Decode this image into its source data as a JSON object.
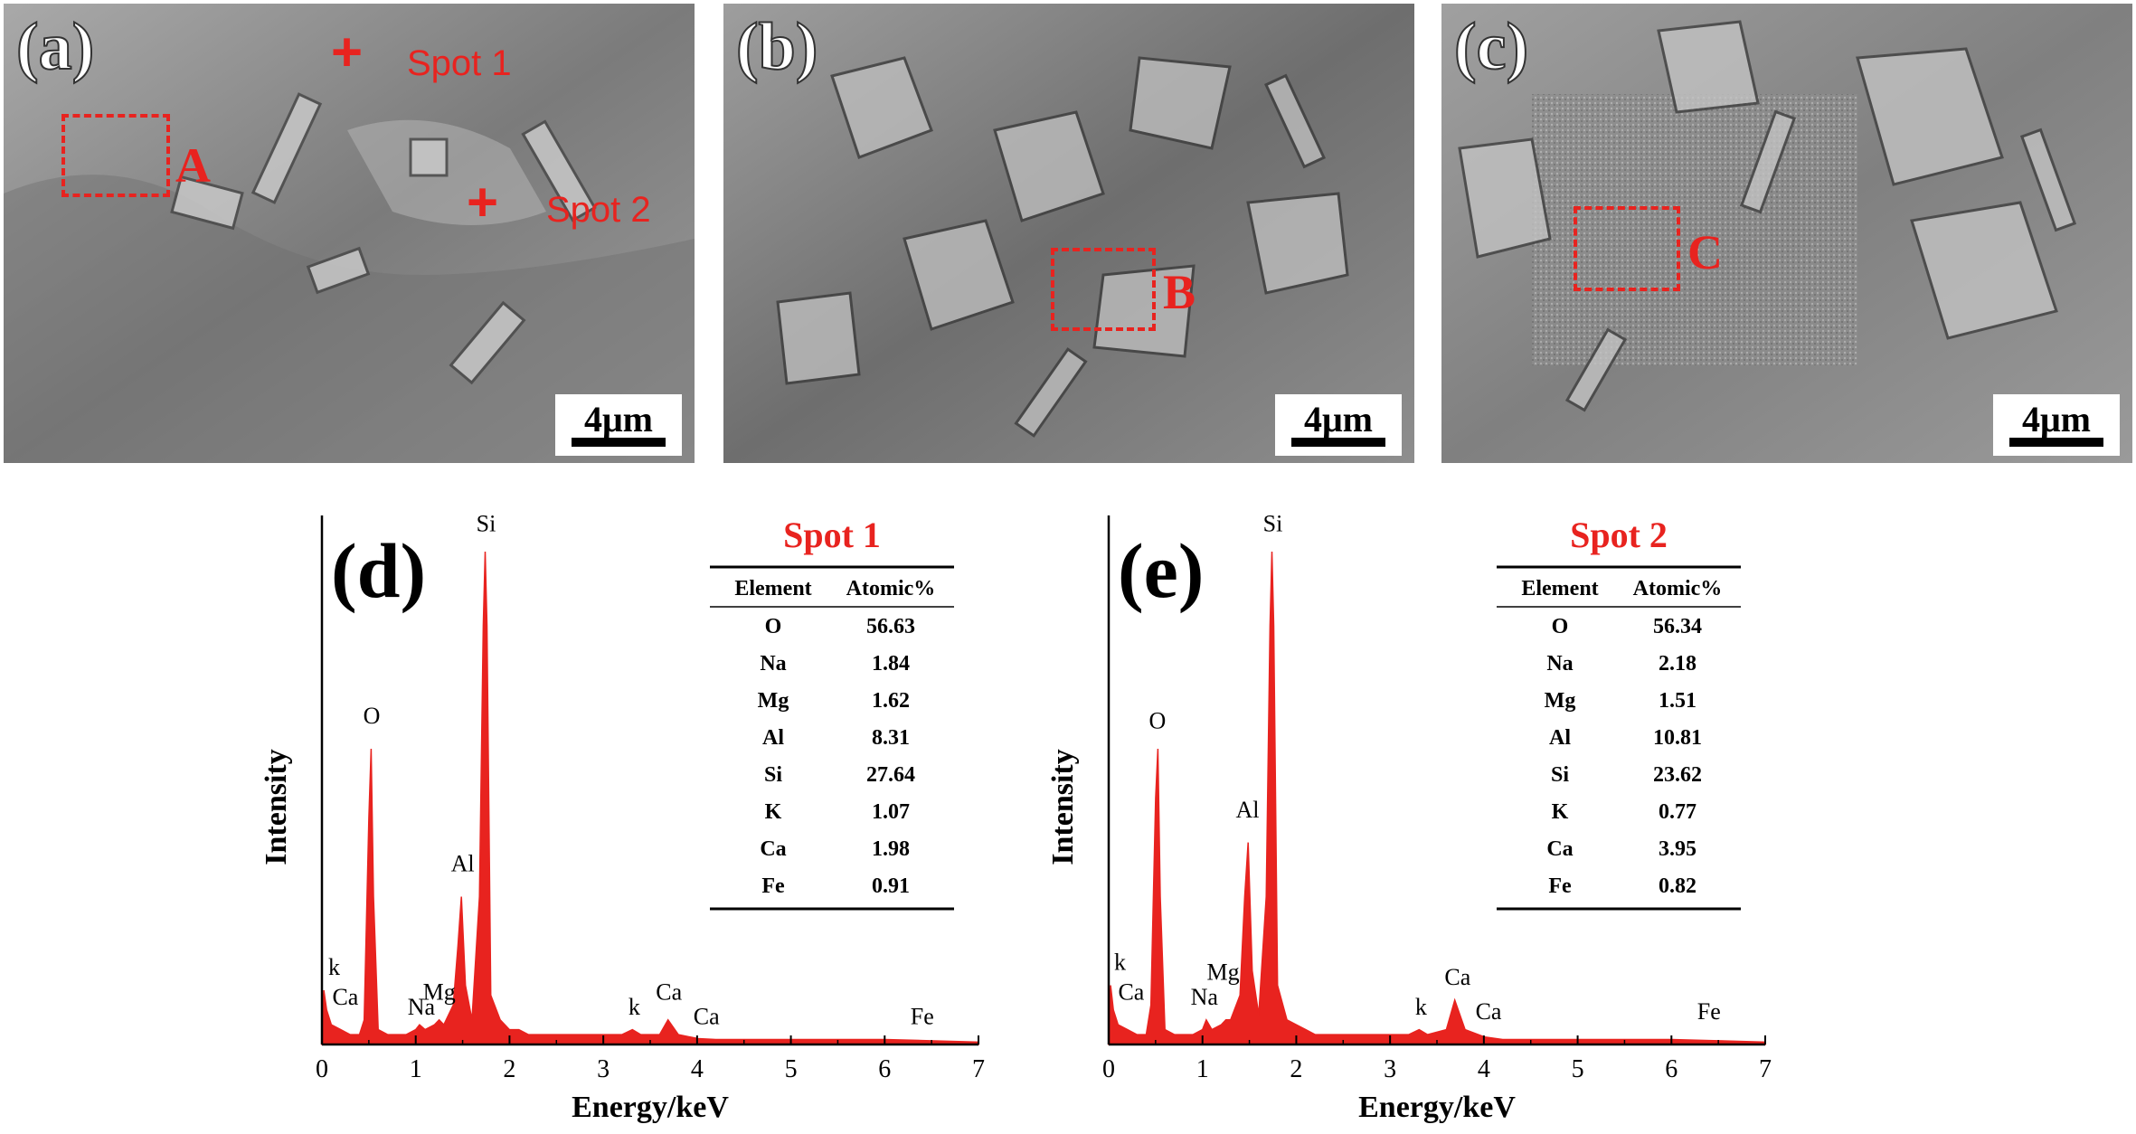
{
  "sem_panels": [
    {
      "letter": "(a)",
      "scale_bar": "4μm",
      "roi": {
        "label": "A"
      },
      "spots": [
        {
          "mark": "+",
          "label": "Spot 1"
        },
        {
          "mark": "+",
          "label": "Spot 2"
        }
      ]
    },
    {
      "letter": "(b)",
      "scale_bar": "4μm",
      "roi": {
        "label": "B"
      }
    },
    {
      "letter": "(c)",
      "scale_bar": "4μm",
      "roi": {
        "label": "C"
      }
    }
  ],
  "colors": {
    "spectrum": "#e8231f",
    "annotation": "#e8231f",
    "axis": "#000000",
    "sem_gray": "#8a8a8a"
  },
  "chart_data": [
    {
      "type": "line",
      "panel_letter": "(d)",
      "title": "Spot 1",
      "xlabel": "Energy/keV",
      "ylabel": "Intensity",
      "xlim": [
        0,
        7
      ],
      "ylim": [
        0,
        1
      ],
      "xticks": [
        "0",
        "1",
        "2",
        "3",
        "4",
        "5",
        "6",
        "7"
      ],
      "series": [
        {
          "x": [
            0.0,
            0.02,
            0.05,
            0.1,
            0.2,
            0.3,
            0.4,
            0.45,
            0.5,
            0.525,
            0.55,
            0.6,
            0.7,
            0.9,
            1.0,
            1.04,
            1.1,
            1.2,
            1.25,
            1.3,
            1.4,
            1.45,
            1.487,
            1.53,
            1.6,
            1.68,
            1.72,
            1.74,
            1.76,
            1.8,
            1.9,
            2.0,
            2.1,
            2.2,
            2.5,
            3.0,
            3.2,
            3.31,
            3.4,
            3.6,
            3.69,
            3.8,
            4.01,
            4.2,
            5.0,
            6.0,
            6.4,
            7.0
          ],
          "y": [
            0.06,
            0.11,
            0.07,
            0.04,
            0.03,
            0.02,
            0.02,
            0.05,
            0.46,
            0.6,
            0.3,
            0.03,
            0.02,
            0.02,
            0.03,
            0.04,
            0.03,
            0.04,
            0.05,
            0.04,
            0.08,
            0.2,
            0.3,
            0.12,
            0.05,
            0.3,
            0.85,
            1.0,
            0.85,
            0.1,
            0.05,
            0.03,
            0.03,
            0.02,
            0.02,
            0.02,
            0.02,
            0.03,
            0.02,
            0.02,
            0.05,
            0.02,
            0.012,
            0.01,
            0.01,
            0.01,
            0.008,
            0.005
          ]
        }
      ],
      "peak_labels": [
        {
          "text": "k",
          "x": 0.13,
          "y": 0.13
        },
        {
          "text": "Ca",
          "x": 0.25,
          "y": 0.07
        },
        {
          "text": "O",
          "x": 0.53,
          "y": 0.64
        },
        {
          "text": "Na",
          "x": 1.06,
          "y": 0.05
        },
        {
          "text": "Mg",
          "x": 1.25,
          "y": 0.08
        },
        {
          "text": "Al",
          "x": 1.5,
          "y": 0.34
        },
        {
          "text": "Si",
          "x": 1.75,
          "y": 1.03
        },
        {
          "text": "k",
          "x": 3.33,
          "y": 0.05
        },
        {
          "text": "Ca",
          "x": 3.7,
          "y": 0.08
        },
        {
          "text": "Ca",
          "x": 4.1,
          "y": 0.03
        },
        {
          "text": "Fe",
          "x": 6.4,
          "y": 0.03
        }
      ],
      "table": {
        "headers": [
          "Element",
          "Atomic%"
        ],
        "rows": [
          [
            "O",
            "56.63"
          ],
          [
            "Na",
            "1.84"
          ],
          [
            "Mg",
            "1.62"
          ],
          [
            "Al",
            "8.31"
          ],
          [
            "Si",
            "27.64"
          ],
          [
            "K",
            "1.07"
          ],
          [
            "Ca",
            "1.98"
          ],
          [
            "Fe",
            "0.91"
          ]
        ]
      }
    },
    {
      "type": "line",
      "panel_letter": "(e)",
      "title": "Spot 2",
      "xlabel": "Energy/keV",
      "ylabel": "Intensity",
      "xlim": [
        0,
        7
      ],
      "ylim": [
        0,
        1
      ],
      "xticks": [
        "0",
        "1",
        "2",
        "3",
        "4",
        "5",
        "6",
        "7"
      ],
      "series": [
        {
          "x": [
            0.0,
            0.02,
            0.05,
            0.1,
            0.2,
            0.3,
            0.4,
            0.45,
            0.5,
            0.525,
            0.55,
            0.6,
            0.7,
            0.9,
            1.0,
            1.04,
            1.1,
            1.2,
            1.25,
            1.3,
            1.4,
            1.45,
            1.487,
            1.53,
            1.6,
            1.68,
            1.72,
            1.74,
            1.76,
            1.8,
            1.9,
            2.0,
            2.1,
            2.2,
            2.5,
            3.0,
            3.2,
            3.31,
            3.4,
            3.6,
            3.69,
            3.8,
            4.01,
            4.2,
            5.0,
            6.0,
            6.4,
            7.0
          ],
          "y": [
            0.06,
            0.12,
            0.07,
            0.04,
            0.03,
            0.02,
            0.02,
            0.08,
            0.5,
            0.6,
            0.3,
            0.03,
            0.02,
            0.02,
            0.03,
            0.05,
            0.03,
            0.04,
            0.05,
            0.05,
            0.1,
            0.3,
            0.41,
            0.15,
            0.06,
            0.3,
            0.85,
            1.0,
            0.85,
            0.12,
            0.05,
            0.04,
            0.03,
            0.02,
            0.02,
            0.02,
            0.02,
            0.03,
            0.02,
            0.03,
            0.09,
            0.03,
            0.015,
            0.01,
            0.01,
            0.01,
            0.008,
            0.005
          ]
        }
      ],
      "peak_labels": [
        {
          "text": "k",
          "x": 0.12,
          "y": 0.14
        },
        {
          "text": "Ca",
          "x": 0.24,
          "y": 0.08
        },
        {
          "text": "O",
          "x": 0.52,
          "y": 0.63
        },
        {
          "text": "Na",
          "x": 1.02,
          "y": 0.07
        },
        {
          "text": "Mg",
          "x": 1.22,
          "y": 0.12
        },
        {
          "text": "Al",
          "x": 1.48,
          "y": 0.45
        },
        {
          "text": "Si",
          "x": 1.75,
          "y": 1.03
        },
        {
          "text": "k",
          "x": 3.33,
          "y": 0.05
        },
        {
          "text": "Ca",
          "x": 3.72,
          "y": 0.11
        },
        {
          "text": "Ca",
          "x": 4.05,
          "y": 0.04
        },
        {
          "text": "Fe",
          "x": 6.4,
          "y": 0.04
        }
      ],
      "table": {
        "headers": [
          "Element",
          "Atomic%"
        ],
        "rows": [
          [
            "O",
            "56.34"
          ],
          [
            "Na",
            "2.18"
          ],
          [
            "Mg",
            "1.51"
          ],
          [
            "Al",
            "10.81"
          ],
          [
            "Si",
            "23.62"
          ],
          [
            "K",
            "0.77"
          ],
          [
            "Ca",
            "3.95"
          ],
          [
            "Fe",
            "0.82"
          ]
        ]
      }
    }
  ]
}
